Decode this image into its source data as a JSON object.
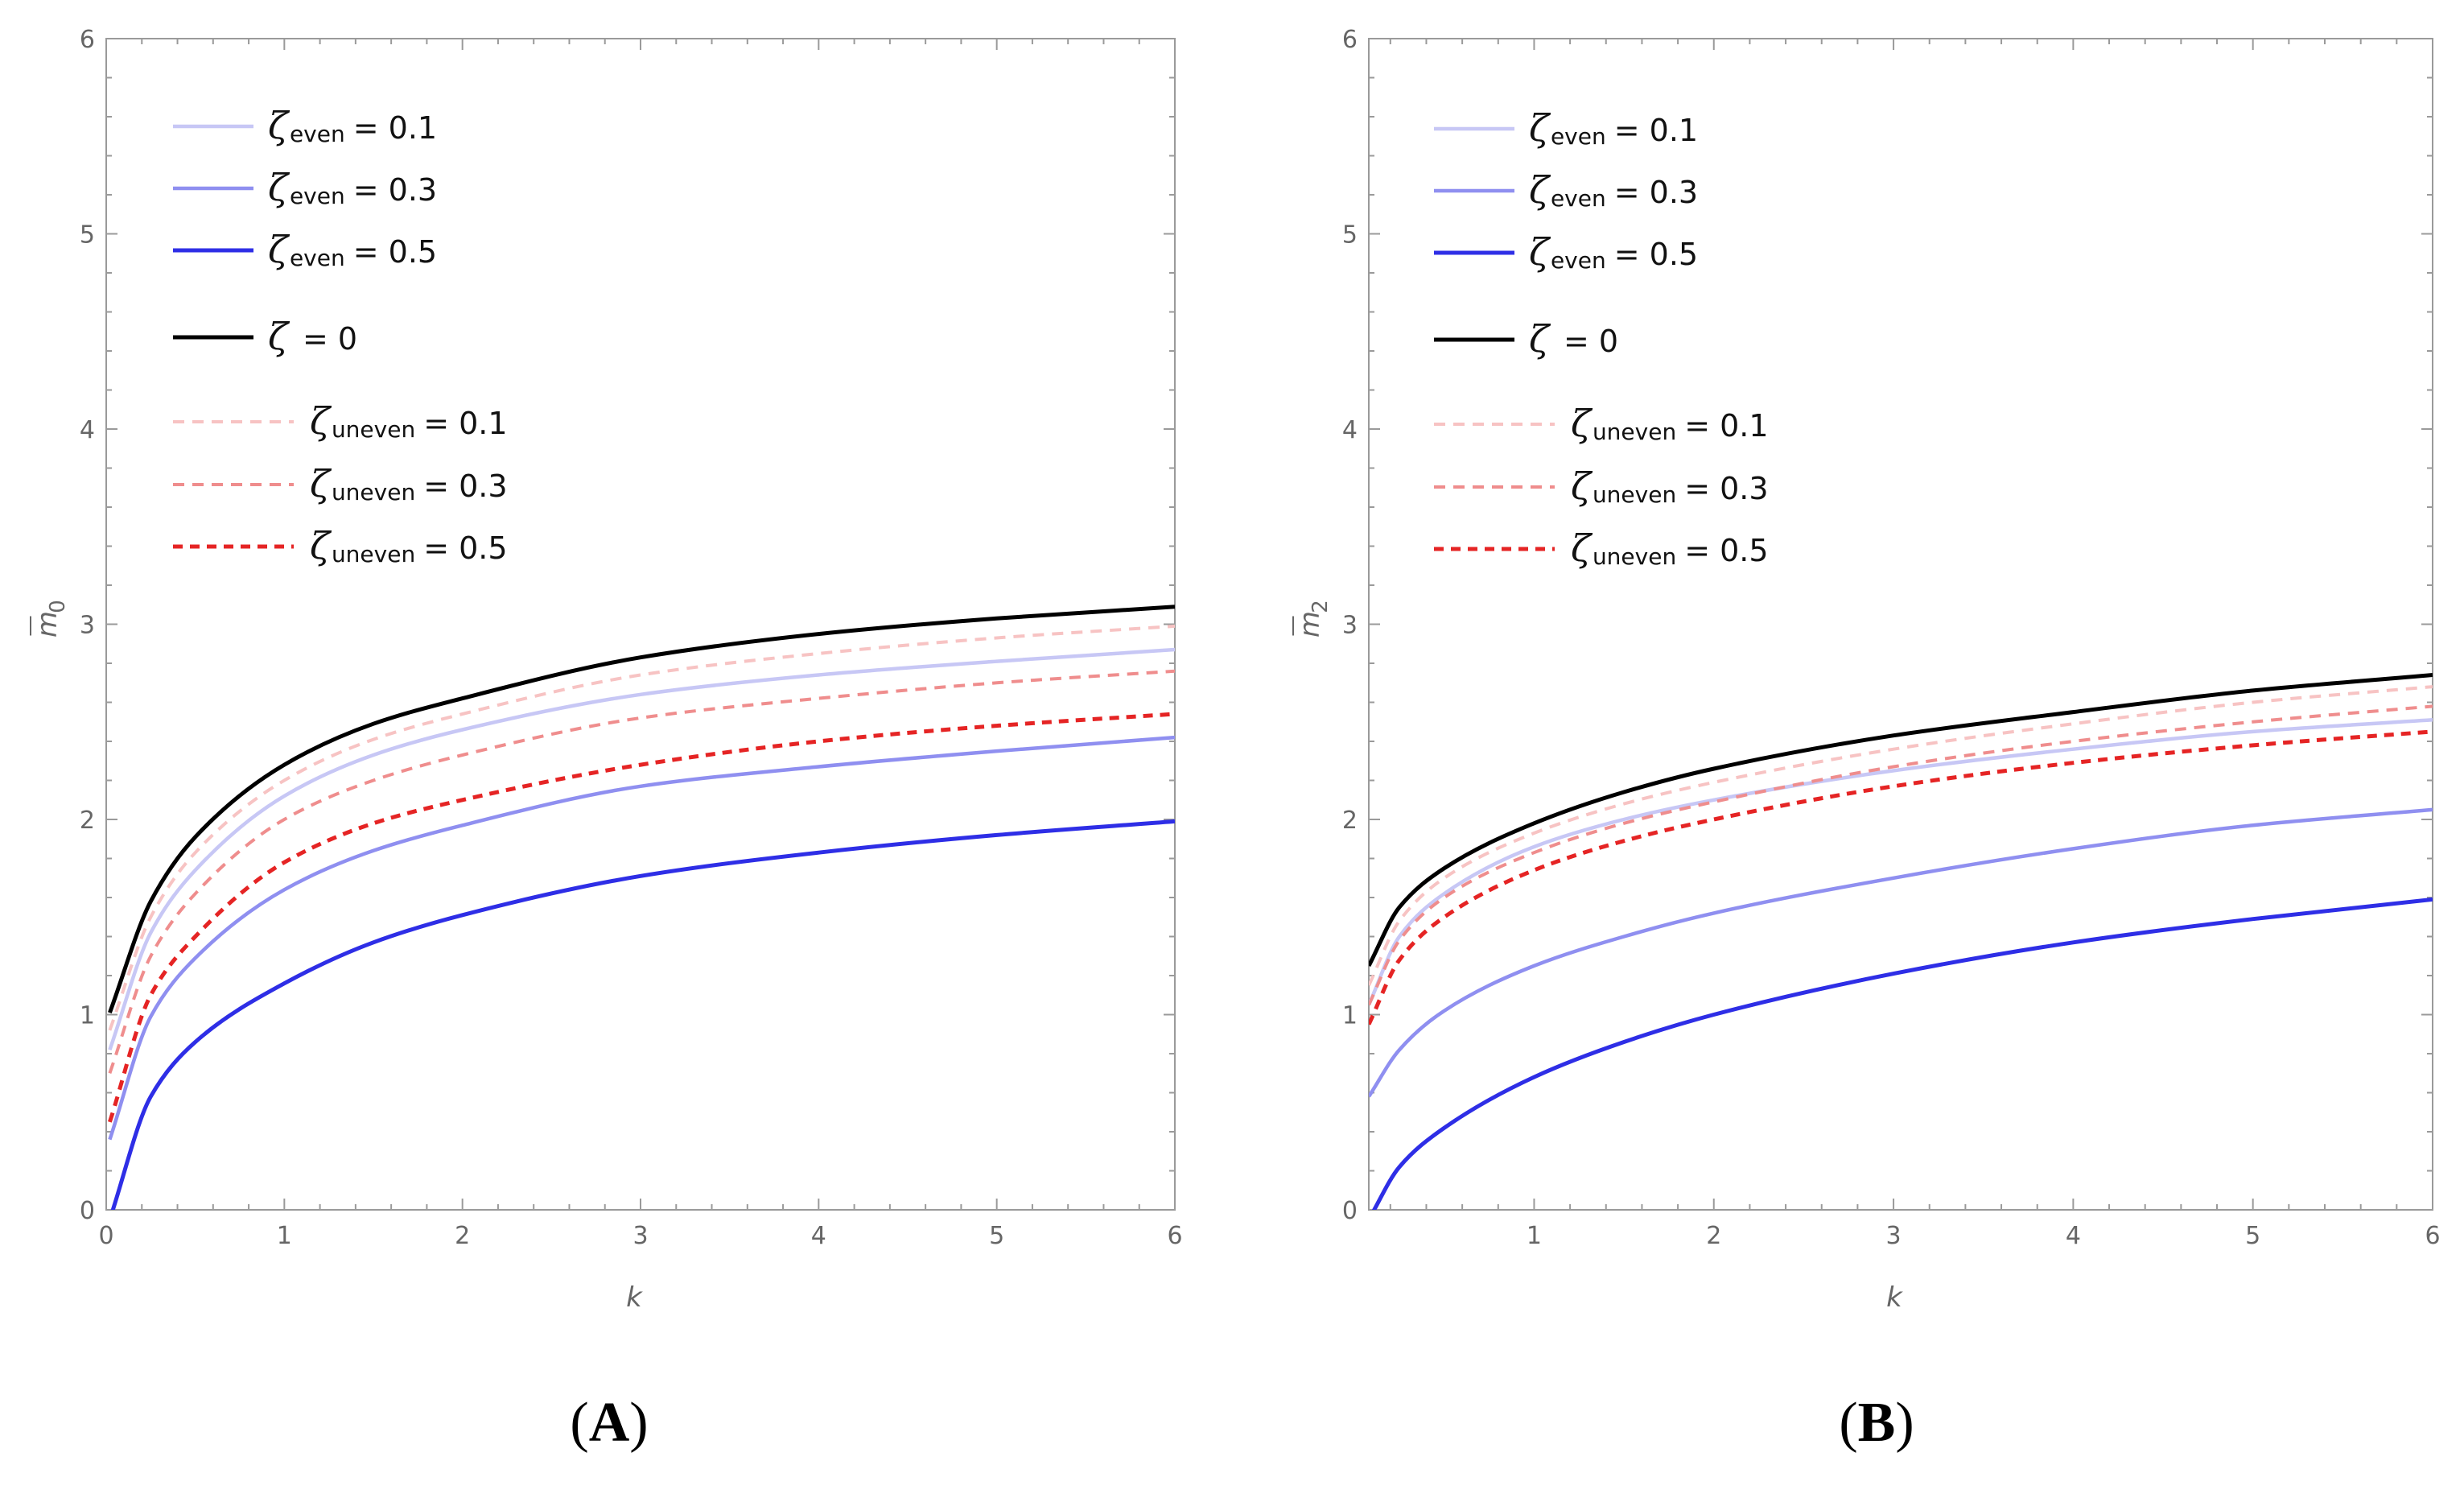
{
  "colors": {
    "even_0_1": "#c7c7f5",
    "even_0_3": "#8f8ff0",
    "even_0_5": "#2e2ee6",
    "zeta_0": "#000000",
    "uneven_0_1": "#f7c3c3",
    "uneven_0_3": "#ef8d8d",
    "uneven_0_5": "#e52424",
    "frame": "#9a9a9a",
    "tick_text": "#666666"
  },
  "legend": [
    {
      "symbol": "ζ",
      "sub": "even",
      "value": "= 0.1",
      "series": "even_0_1",
      "dashed": false
    },
    {
      "symbol": "ζ",
      "sub": "even",
      "value": "= 0.3",
      "series": "even_0_3",
      "dashed": false
    },
    {
      "symbol": "ζ",
      "sub": "even",
      "value": "= 0.5",
      "series": "even_0_5",
      "dashed": false
    },
    {
      "symbol": "ζ",
      "sub": "",
      "value": "= 0",
      "series": "zeta_0",
      "dashed": false
    },
    {
      "symbol": "ζ",
      "sub": "uneven",
      "value": "= 0.1",
      "series": "uneven_0_1",
      "dashed": true
    },
    {
      "symbol": "ζ",
      "sub": "uneven",
      "value": "= 0.3",
      "series": "uneven_0_3",
      "dashed": true
    },
    {
      "symbol": "ζ",
      "sub": "uneven",
      "value": "= 0.5",
      "series": "uneven_0_5",
      "dashed": true
    }
  ],
  "chart_data": [
    {
      "type": "line",
      "panel_label": "A",
      "xlabel": "k",
      "ylabel_main": "m",
      "ylabel_sub": "0",
      "xlim": [
        0,
        6
      ],
      "ylim": [
        0,
        6
      ],
      "xticks": [
        "0",
        "1",
        "2",
        "3",
        "4",
        "5",
        "6"
      ],
      "yticks": [
        "0",
        "1",
        "2",
        "3",
        "4",
        "5",
        "6"
      ],
      "x": [
        0.02,
        0.25,
        0.5,
        1,
        1.5,
        2,
        3,
        4,
        5,
        6
      ],
      "series": [
        {
          "name": "zeta_even = 0.1",
          "key": "even_0_1",
          "values": [
            0.82,
            1.42,
            1.74,
            2.12,
            2.33,
            2.46,
            2.64,
            2.74,
            2.81,
            2.87
          ]
        },
        {
          "name": "zeta_even = 0.3",
          "key": "even_0_3",
          "values": [
            0.36,
            0.99,
            1.29,
            1.64,
            1.84,
            1.97,
            2.17,
            2.27,
            2.35,
            2.42
          ]
        },
        {
          "name": "zeta_even = 0.5",
          "key": "even_0_5",
          "values": [
            -0.05,
            0.58,
            0.86,
            1.16,
            1.37,
            1.51,
            1.71,
            1.83,
            1.92,
            1.99
          ]
        },
        {
          "name": "zeta = 0",
          "key": "zeta_0",
          "values": [
            1.01,
            1.58,
            1.91,
            2.28,
            2.49,
            2.62,
            2.83,
            2.95,
            3.03,
            3.09
          ]
        },
        {
          "name": "zeta_uneven = 0.1",
          "key": "uneven_0_1",
          "values": [
            0.92,
            1.5,
            1.83,
            2.2,
            2.41,
            2.54,
            2.74,
            2.85,
            2.93,
            2.99
          ]
        },
        {
          "name": "zeta_uneven = 0.3",
          "key": "uneven_0_3",
          "values": [
            0.7,
            1.3,
            1.62,
            2.0,
            2.2,
            2.33,
            2.52,
            2.62,
            2.7,
            2.76
          ]
        },
        {
          "name": "zeta_uneven = 0.5",
          "key": "uneven_0_5",
          "values": [
            0.45,
            1.1,
            1.4,
            1.78,
            1.98,
            2.1,
            2.28,
            2.4,
            2.48,
            2.54
          ]
        }
      ]
    },
    {
      "type": "line",
      "panel_label": "B",
      "xlabel": "k",
      "ylabel_main": "m",
      "ylabel_sub": "2",
      "xlim": [
        0.08,
        6
      ],
      "ylim": [
        0,
        6
      ],
      "xticks": [
        "1",
        "2",
        "3",
        "4",
        "5",
        "6"
      ],
      "yticks": [
        "0",
        "1",
        "2",
        "3",
        "4",
        "5",
        "6"
      ],
      "x": [
        0.08,
        0.25,
        0.5,
        1,
        1.5,
        2,
        3,
        4,
        5,
        6
      ],
      "series": [
        {
          "name": "zeta_even = 0.1",
          "key": "even_0_1",
          "values": [
            1.05,
            1.4,
            1.62,
            1.86,
            2.0,
            2.1,
            2.25,
            2.36,
            2.45,
            2.51
          ]
        },
        {
          "name": "zeta_even = 0.3",
          "key": "even_0_3",
          "values": [
            0.58,
            0.82,
            1.02,
            1.25,
            1.4,
            1.52,
            1.7,
            1.85,
            1.97,
            2.05
          ]
        },
        {
          "name": "zeta_even = 0.5",
          "key": "even_0_5",
          "values": [
            -0.05,
            0.22,
            0.42,
            0.68,
            0.86,
            1.0,
            1.21,
            1.37,
            1.49,
            1.59
          ]
        },
        {
          "name": "zeta = 0",
          "key": "zeta_0",
          "values": [
            1.25,
            1.55,
            1.75,
            1.98,
            2.14,
            2.26,
            2.43,
            2.55,
            2.66,
            2.74
          ]
        },
        {
          "name": "zeta_uneven = 0.1",
          "key": "uneven_0_1",
          "values": [
            1.15,
            1.48,
            1.7,
            1.93,
            2.08,
            2.19,
            2.36,
            2.49,
            2.6,
            2.68
          ]
        },
        {
          "name": "zeta_uneven = 0.3",
          "key": "uneven_0_3",
          "values": [
            1.05,
            1.38,
            1.6,
            1.83,
            1.98,
            2.09,
            2.27,
            2.4,
            2.5,
            2.58
          ]
        },
        {
          "name": "zeta_uneven = 0.5",
          "key": "uneven_0_5",
          "values": [
            0.95,
            1.28,
            1.5,
            1.74,
            1.89,
            2.0,
            2.17,
            2.29,
            2.38,
            2.45
          ]
        }
      ]
    }
  ]
}
